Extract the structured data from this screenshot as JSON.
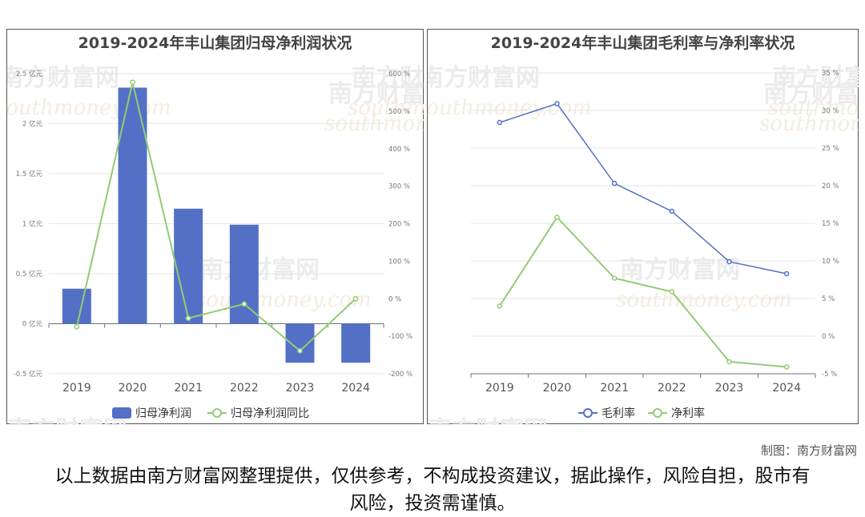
{
  "left_chart": {
    "title": "2019-2024年丰山集团归母净利润状况",
    "categories": [
      "2019",
      "2020",
      "2021",
      "2022",
      "2023",
      "2024"
    ],
    "y_left_ticks": [
      "2.5 亿元",
      "2 亿元",
      "1.5 亿元",
      "1 亿元",
      "0.5 亿元",
      "0 亿元",
      "-0.5 亿元"
    ],
    "y_right_ticks": [
      "600 %",
      "500 %",
      "400 %",
      "300 %",
      "200 %",
      "100 %",
      "0 %",
      "-100 %",
      "-200 %"
    ],
    "legend": [
      "归母净利润",
      "归母净利润同比"
    ]
  },
  "right_chart": {
    "title": "2019-2024年丰山集团毛利率与净利率状况",
    "categories": [
      "2019",
      "2020",
      "2021",
      "2022",
      "2023",
      "2024"
    ],
    "y_right_ticks": [
      "35 %",
      "30 %",
      "25 %",
      "20 %",
      "15 %",
      "10 %",
      "5 %",
      "0 %",
      "-5 %"
    ],
    "legend": [
      "毛利率",
      "净利率"
    ]
  },
  "colors": {
    "bar": "#5470c6",
    "green": "#91cc75",
    "blue": "#5470c6"
  },
  "watermark": {
    "cn": "南方财富网",
    "en": "southmoney.com"
  },
  "credit": "制图：南方财富网",
  "disclaimer": "以上数据由南方财富网整理提供，仅供参考，不构成投资建议，据此操作，风险自担，股市有风险，投资需谨慎。",
  "chart_data": [
    {
      "type": "bar",
      "title": "2019-2024年丰山集团归母净利润状况",
      "categories": [
        "2019",
        "2020",
        "2021",
        "2022",
        "2023",
        "2024"
      ],
      "series": [
        {
          "name": "归母净利润",
          "type": "bar",
          "axis": "left",
          "unit": "亿元",
          "values": [
            0.35,
            2.36,
            1.15,
            0.99,
            -0.39,
            -0.39
          ]
        },
        {
          "name": "归母净利润同比",
          "type": "line",
          "axis": "right",
          "unit": "%",
          "values": [
            -75,
            577,
            -52,
            -14,
            -139,
            0
          ]
        }
      ],
      "ylim_left": [
        -0.5,
        2.5
      ],
      "ylim_right": [
        -200,
        600
      ],
      "grid": true,
      "legend": "bottom"
    },
    {
      "type": "line",
      "title": "2019-2024年丰山集团毛利率与净利率状况",
      "categories": [
        "2019",
        "2020",
        "2021",
        "2022",
        "2023",
        "2024"
      ],
      "series": [
        {
          "name": "毛利率",
          "unit": "%",
          "values": [
            28.4,
            30.9,
            20.3,
            16.6,
            9.9,
            8.3
          ]
        },
        {
          "name": "净利率",
          "unit": "%",
          "values": [
            4.0,
            15.8,
            7.7,
            5.9,
            -3.4,
            -4.1
          ]
        }
      ],
      "ylim": [
        -5,
        35
      ],
      "grid": true,
      "legend": "bottom"
    }
  ]
}
